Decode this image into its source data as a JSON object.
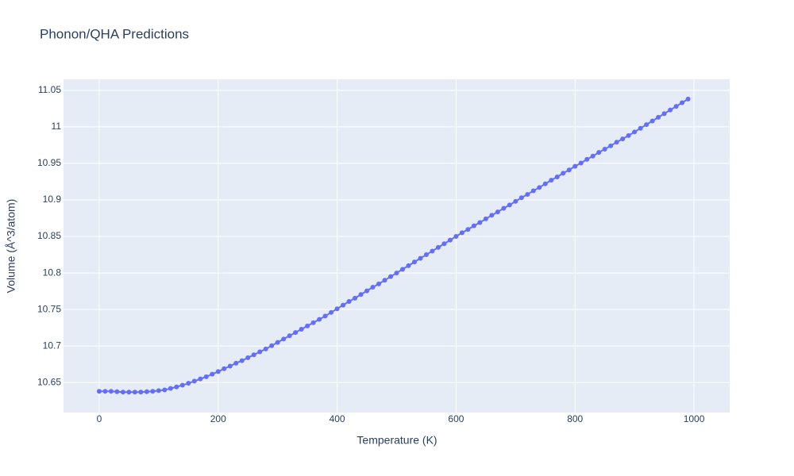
{
  "chart_data": {
    "type": "line",
    "title": "Phonon/QHA Predictions",
    "x_label": "Temperature (K)",
    "y_label": "Volume (Å^3/atom)",
    "color": "#636efa",
    "grid": true,
    "markers": true,
    "x": [
      0,
      10,
      20,
      30,
      40,
      50,
      60,
      70,
      80,
      90,
      100,
      110,
      120,
      130,
      140,
      150,
      160,
      170,
      180,
      190,
      200,
      210,
      220,
      230,
      240,
      250,
      260,
      270,
      280,
      290,
      300,
      310,
      320,
      330,
      340,
      350,
      360,
      370,
      380,
      390,
      400,
      410,
      420,
      430,
      440,
      450,
      460,
      470,
      480,
      490,
      500,
      510,
      520,
      530,
      540,
      550,
      560,
      570,
      580,
      590,
      600,
      610,
      620,
      630,
      640,
      650,
      660,
      670,
      680,
      690,
      700,
      710,
      720,
      730,
      740,
      750,
      760,
      770,
      780,
      790,
      800,
      810,
      820,
      830,
      840,
      850,
      860,
      870,
      880,
      890,
      900,
      910,
      920,
      930,
      940,
      950,
      960,
      970,
      980,
      990
    ],
    "values": [
      10.638,
      10.638,
      10.638,
      10.6375,
      10.637,
      10.637,
      10.637,
      10.637,
      10.6375,
      10.638,
      10.639,
      10.64,
      10.642,
      10.644,
      10.6465,
      10.649,
      10.652,
      10.655,
      10.658,
      10.6615,
      10.665,
      10.669,
      10.6725,
      10.6765,
      10.68,
      10.684,
      10.688,
      10.692,
      10.696,
      10.7005,
      10.705,
      10.7095,
      10.714,
      10.7185,
      10.723,
      10.7275,
      10.732,
      10.7365,
      10.741,
      10.746,
      10.751,
      10.756,
      10.761,
      10.7655,
      10.7705,
      10.7755,
      10.7805,
      10.785,
      10.79,
      10.795,
      10.8,
      10.805,
      10.81,
      10.815,
      10.82,
      10.825,
      10.83,
      10.835,
      10.84,
      10.845,
      10.85,
      10.855,
      10.8595,
      10.8645,
      10.869,
      10.874,
      10.879,
      10.8835,
      10.8885,
      10.893,
      10.898,
      10.903,
      10.9075,
      10.9125,
      10.917,
      10.922,
      10.927,
      10.9315,
      10.9365,
      10.941,
      10.946,
      10.9505,
      10.9555,
      10.96,
      10.965,
      10.9695,
      10.974,
      10.979,
      10.9835,
      10.988,
      10.993,
      10.998,
      11.003,
      11.008,
      11.013,
      11.018,
      11.023,
      11.028,
      11.033,
      11.038
    ],
    "xlim": [
      -60,
      1060
    ],
    "xticks": [
      0,
      200,
      400,
      600,
      800,
      1000
    ],
    "ylim": [
      10.609,
      11.065
    ],
    "yticks": [
      10.65,
      10.7,
      10.75,
      10.8,
      10.85,
      10.9,
      10.95,
      11,
      11.05
    ]
  }
}
